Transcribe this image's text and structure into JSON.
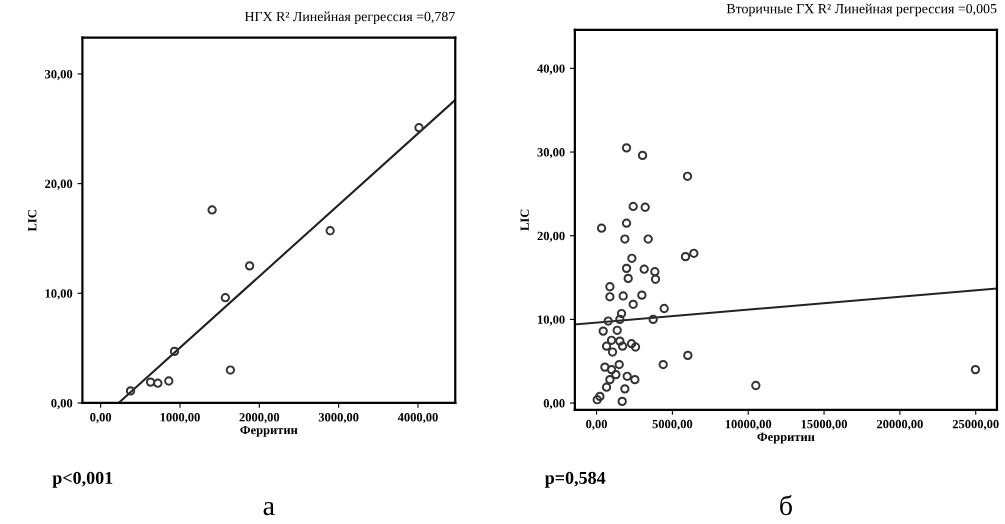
{
  "chart_data": [
    {
      "type": "scatter",
      "title": "НГХ R² Линейная регрессия =0,787",
      "xlabel": "Ферритин",
      "ylabel": "LIC",
      "annotations": [
        "p<0,001",
        "а"
      ],
      "xlim": [
        -230,
        4470
      ],
      "ylim": [
        0,
        33.3
      ],
      "xticks": [
        {
          "value": 0,
          "label": "0,00"
        },
        {
          "value": 1000,
          "label": "1000,00"
        },
        {
          "value": 2000,
          "label": "2000,00"
        },
        {
          "value": 3000,
          "label": "3000,00"
        },
        {
          "value": 4000,
          "label": "4000,00"
        }
      ],
      "yticks": [
        {
          "value": 0,
          "label": "0,00"
        },
        {
          "value": 10,
          "label": "10,00"
        },
        {
          "value": 20,
          "label": "20,00"
        },
        {
          "value": 30,
          "label": "30,00"
        }
      ],
      "grid": false,
      "legend": false,
      "series": [
        {
          "marker": "circle",
          "color": "#333333",
          "x": [
            377,
            629,
            721,
            859,
            931,
            1405,
            1572,
            1635,
            1878,
            2893,
            4013
          ],
          "values": [
            1.1,
            1.9,
            1.8,
            2.0,
            4.7,
            17.6,
            9.6,
            3.0,
            12.5,
            15.7,
            25.1
          ]
        },
        {
          "type": "line",
          "marker": "none",
          "line_style": "solid",
          "color": "#222222",
          "x": [
            226,
            4465
          ],
          "values": [
            0,
            27.6
          ]
        }
      ]
    },
    {
      "type": "scatter",
      "title": "Вторичные ГХ R² Линейная регрессия =0,005",
      "xlabel": "Ферритин",
      "ylabel": "LIC",
      "annotations": [
        "p=0,584",
        "б"
      ],
      "xlim": [
        -1430,
        26400
      ],
      "ylim": [
        -0.8,
        44.6
      ],
      "xticks": [
        {
          "value": 0,
          "label": "0,00"
        },
        {
          "value": 5000,
          "label": "5000,00"
        },
        {
          "value": 10000,
          "label": "10000,00"
        },
        {
          "value": 15000,
          "label": "15000,00"
        },
        {
          "value": 20000,
          "label": "20000,00"
        },
        {
          "value": 25000,
          "label": "25000,00"
        }
      ],
      "yticks": [
        {
          "value": 0,
          "label": "0,00"
        },
        {
          "value": 10,
          "label": "10,00"
        },
        {
          "value": 20,
          "label": "20,00"
        },
        {
          "value": 30,
          "label": "30,00"
        },
        {
          "value": 40,
          "label": "40,00"
        }
      ],
      "grid": false,
      "legend": false,
      "series": [
        {
          "marker": "circle",
          "color": "#333333",
          "x": [
            1977,
            3032,
            5997,
            2416,
            3207,
            1977,
            330,
            1867,
            3405,
            2329,
            5865,
            6415,
            1977,
            3141,
            3844,
            2087,
            3888,
            879,
            879,
            1757,
            2988,
            2416,
            4459,
            1648,
            1538,
            3734,
            769,
            439,
            1362,
            989,
            1538,
            2307,
            659,
            1714,
            2570,
            1054,
            6019,
            549,
            1494,
            4394,
            989,
            1274,
            2021,
            879,
            2527,
            659,
            1867,
            10501,
            24982,
            220,
            44,
            1692
          ],
          "values": [
            30.5,
            29.6,
            27.1,
            23.5,
            23.4,
            21.5,
            20.9,
            19.6,
            19.6,
            17.3,
            17.5,
            17.9,
            16.1,
            16.0,
            15.7,
            14.9,
            14.8,
            13.9,
            12.7,
            12.8,
            12.9,
            11.8,
            11.3,
            10.7,
            10.0,
            10.0,
            9.8,
            8.6,
            8.7,
            7.5,
            7.4,
            7.1,
            6.8,
            6.8,
            6.7,
            6.1,
            5.7,
            4.3,
            4.6,
            4.6,
            4.0,
            3.4,
            3.2,
            2.8,
            2.8,
            1.9,
            1.7,
            2.1,
            4.0,
            0.8,
            0.4,
            0.2
          ]
        },
        {
          "type": "line",
          "marker": "none",
          "line_style": "solid",
          "color": "#222222",
          "x": [
            -1430,
            26400
          ],
          "values": [
            9.4,
            13.7
          ]
        }
      ]
    }
  ]
}
